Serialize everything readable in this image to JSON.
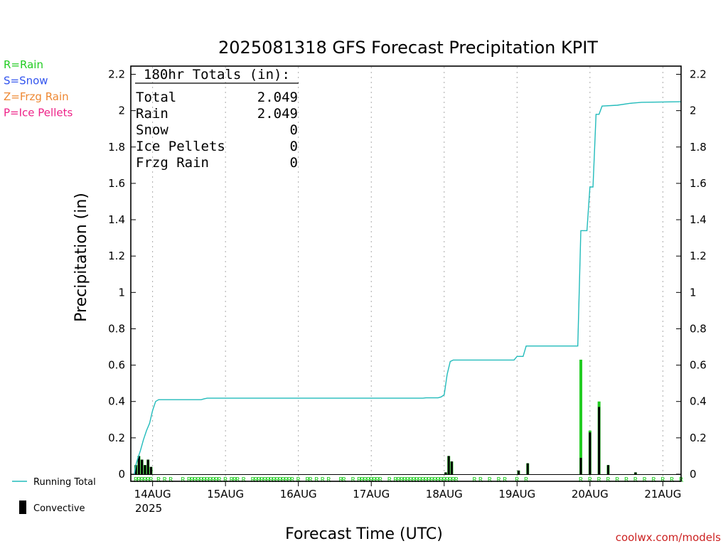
{
  "chart_data": {
    "type": "bar",
    "title": "2025081318 GFS Forecast Precipitation KPIT",
    "xlabel": "Forecast Time (UTC)",
    "ylabel": "Precipitation (in)",
    "ylim": [
      0,
      2.25
    ],
    "y_ticks": [
      "0",
      "0.2",
      "0.4",
      "0.6",
      "0.8",
      "1",
      "1.2",
      "1.4",
      "1.6",
      "1.8",
      "2",
      "2.2"
    ],
    "x_range_hours": [
      0,
      180
    ],
    "x_day_ticks": [
      {
        "hour": 6,
        "label": "14AUG"
      },
      {
        "hour": 30,
        "label": "15AUG"
      },
      {
        "hour": 54,
        "label": "16AUG"
      },
      {
        "hour": 78,
        "label": "17AUG"
      },
      {
        "hour": 102,
        "label": "18AUG"
      },
      {
        "hour": 126,
        "label": "19AUG"
      },
      {
        "hour": 150,
        "label": "20AUG"
      },
      {
        "hour": 174,
        "label": "21AUG"
      }
    ],
    "x_year_label": "2025",
    "precip_type_legend": [
      {
        "label": "R=Rain",
        "color": "#22cc22"
      },
      {
        "label": "S=Snow",
        "color": "#3355ee"
      },
      {
        "label": "Z=Frzg Rain",
        "color": "#ee8833"
      },
      {
        "label": "P=Ice Pellets",
        "color": "#ee2288"
      }
    ],
    "series_legend": [
      {
        "label": "Running Total",
        "color": "#22bbbb"
      },
      {
        "label": "Convective",
        "color": "#000000"
      }
    ],
    "totals": {
      "header": "180hr Totals (in):",
      "rows": [
        {
          "label": "Total",
          "value": "2.049"
        },
        {
          "label": "Rain",
          "value": "2.049"
        },
        {
          "label": "Snow",
          "value": "0"
        },
        {
          "label": "Ice Pellets",
          "value": "0"
        },
        {
          "label": "Frzg Rain",
          "value": "0"
        }
      ]
    },
    "series": [
      {
        "name": "Running Total",
        "points": [
          [
            0,
            0
          ],
          [
            0.5,
            0.05
          ],
          [
            1,
            0.08
          ],
          [
            2,
            0.13
          ],
          [
            3,
            0.19
          ],
          [
            4,
            0.24
          ],
          [
            5,
            0.28
          ],
          [
            6,
            0.35
          ],
          [
            7,
            0.4
          ],
          [
            8,
            0.41
          ],
          [
            22,
            0.41
          ],
          [
            23,
            0.415
          ],
          [
            24,
            0.418
          ],
          [
            95,
            0.418
          ],
          [
            96,
            0.42
          ],
          [
            100,
            0.42
          ],
          [
            101,
            0.425
          ],
          [
            102,
            0.437
          ],
          [
            103,
            0.55
          ],
          [
            104,
            0.62
          ],
          [
            105,
            0.628
          ],
          [
            125,
            0.628
          ],
          [
            126,
            0.648
          ],
          [
            128,
            0.648
          ],
          [
            129,
            0.705
          ],
          [
            146,
            0.705
          ],
          [
            147,
            1.34
          ],
          [
            148,
            1.34
          ],
          [
            149,
            1.34
          ],
          [
            150,
            1.58
          ],
          [
            151,
            1.58
          ],
          [
            152,
            1.98
          ],
          [
            153,
            1.98
          ],
          [
            154,
            2.025
          ],
          [
            159,
            2.03
          ],
          [
            163,
            2.04
          ],
          [
            167,
            2.046
          ],
          [
            180,
            2.049
          ]
        ]
      },
      {
        "name": "Precipitation",
        "bars": [
          [
            0.5,
            0.05
          ],
          [
            1.5,
            0.1
          ],
          [
            2.5,
            0.08
          ],
          [
            3.5,
            0.05
          ],
          [
            4.5,
            0.08
          ],
          [
            5.5,
            0.04
          ],
          [
            102.5,
            0.01
          ],
          [
            103.5,
            0.1
          ],
          [
            104.5,
            0.07
          ],
          [
            126.5,
            0.02
          ],
          [
            129.5,
            0.06
          ],
          [
            147,
            0.63
          ],
          [
            150,
            0.24
          ],
          [
            153,
            0.4
          ],
          [
            156,
            0.05
          ],
          [
            165,
            0.01
          ]
        ]
      },
      {
        "name": "Convective",
        "bars": [
          [
            0.5,
            0.05
          ],
          [
            1.5,
            0.1
          ],
          [
            2.5,
            0.08
          ],
          [
            3.5,
            0.05
          ],
          [
            4.5,
            0.08
          ],
          [
            5.5,
            0.04
          ],
          [
            102.5,
            0.01
          ],
          [
            103.5,
            0.1
          ],
          [
            104.5,
            0.07
          ],
          [
            126.5,
            0.02
          ],
          [
            129.5,
            0.06
          ],
          [
            147,
            0.09
          ],
          [
            150,
            0.23
          ],
          [
            153,
            0.37
          ],
          [
            156,
            0.05
          ],
          [
            165,
            0.01
          ]
        ]
      }
    ],
    "type_marker_symbol": "R",
    "type_marker_hours": [
      0.5,
      1.5,
      2.5,
      3.5,
      4.5,
      5.5,
      8,
      10,
      12,
      16,
      18,
      19,
      20,
      21,
      22,
      23,
      24,
      25,
      26,
      27,
      28,
      30,
      32,
      33,
      34,
      36,
      39,
      40,
      41,
      42,
      43,
      44,
      45,
      46,
      47,
      48,
      49,
      50,
      51,
      52,
      54,
      57,
      58,
      60,
      62,
      64,
      68,
      69,
      72,
      74,
      75,
      76,
      77,
      78,
      79,
      80,
      81,
      84,
      86,
      87,
      88,
      89,
      90,
      91,
      92,
      93,
      94,
      95,
      96,
      97,
      98,
      99,
      100,
      101,
      102,
      103,
      104,
      105,
      106,
      112,
      114,
      117,
      120,
      122,
      126,
      129,
      147,
      150,
      153,
      156,
      159,
      162,
      165,
      168,
      171,
      174,
      177,
      180
    ]
  },
  "watermark": "coolwx.com/models"
}
